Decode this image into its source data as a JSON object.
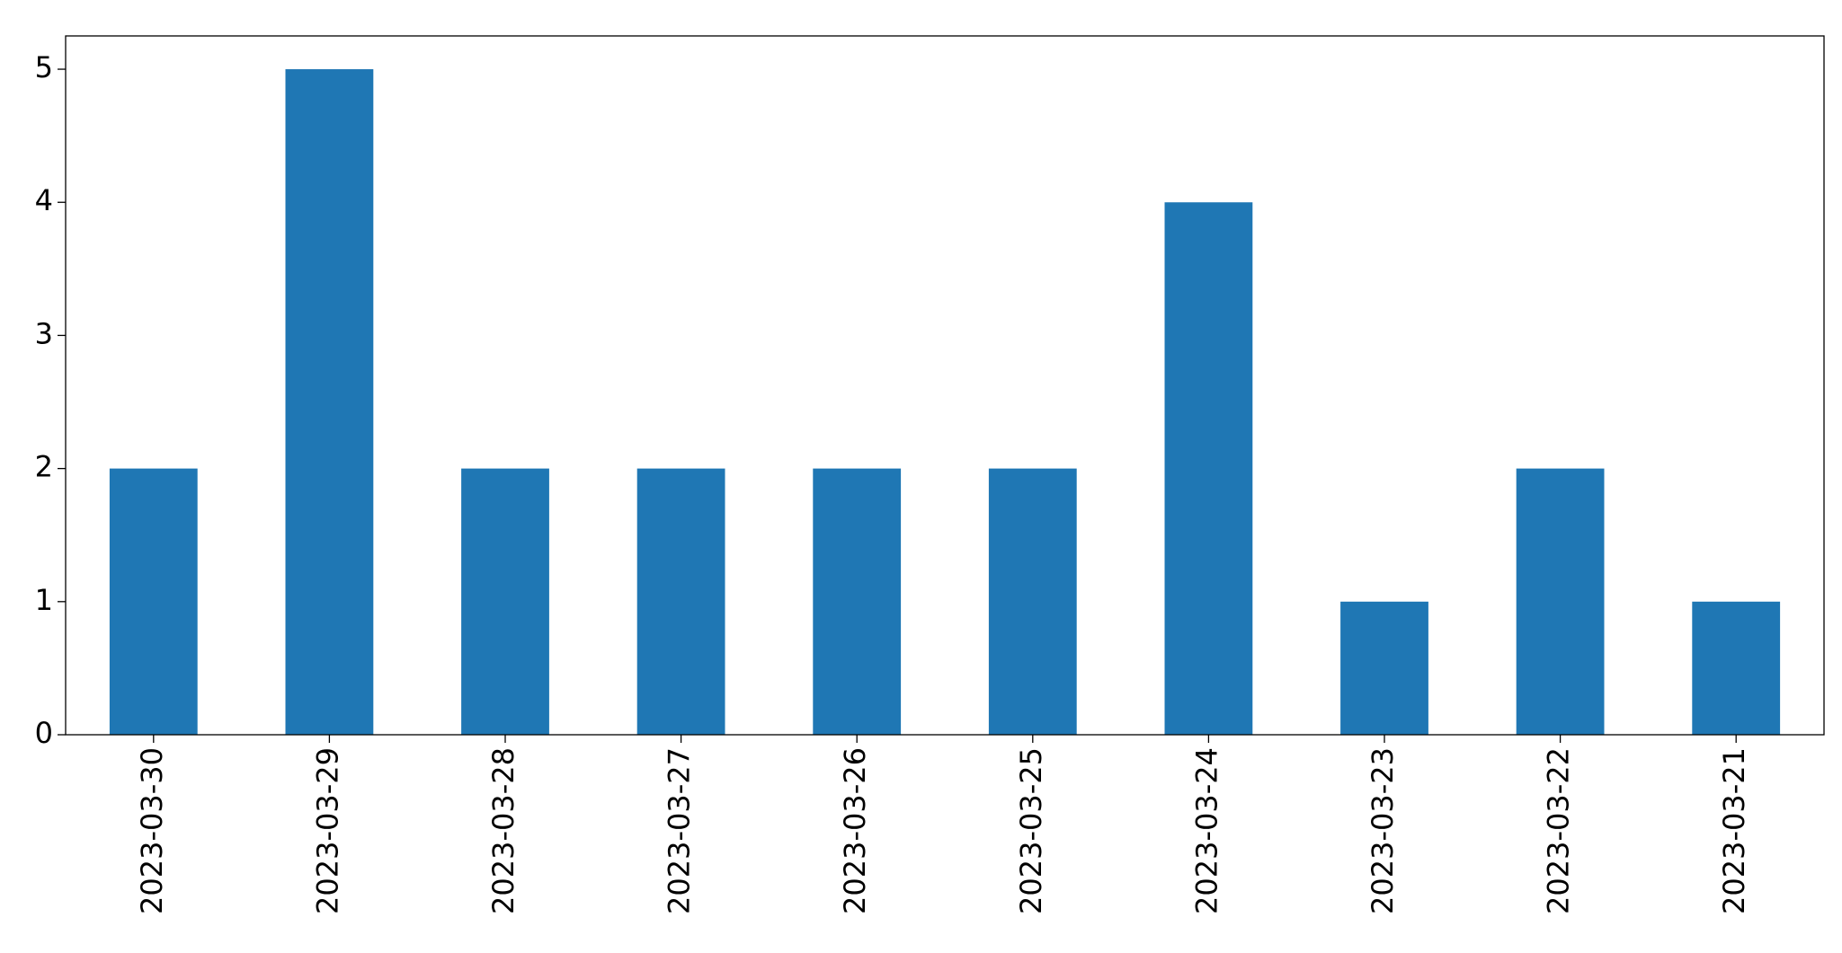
{
  "chart_data": {
    "type": "bar",
    "categories": [
      "2023-03-30",
      "2023-03-29",
      "2023-03-28",
      "2023-03-27",
      "2023-03-26",
      "2023-03-25",
      "2023-03-24",
      "2023-03-23",
      "2023-03-22",
      "2023-03-21"
    ],
    "values": [
      2,
      5,
      2,
      2,
      2,
      2,
      4,
      1,
      2,
      1
    ],
    "color": "#1f77b4",
    "ylim": [
      0,
      5.25
    ],
    "yticks": [
      0,
      1,
      2,
      3,
      4,
      5
    ],
    "grid": false
  }
}
